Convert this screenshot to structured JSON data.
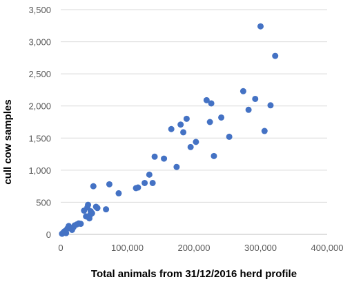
{
  "chart_data": {
    "type": "scatter",
    "title": "",
    "xlabel": "Total animals from 31/12/2016 herd profile",
    "ylabel": "cull cow samples",
    "xlim": [
      0,
      400000
    ],
    "ylim": [
      0,
      3500
    ],
    "x_ticks": [
      0,
      100000,
      200000,
      300000,
      400000
    ],
    "x_tick_labels": [
      "0",
      "100,000",
      "200,000",
      "300,000",
      "400,000"
    ],
    "y_ticks": [
      0,
      500,
      1000,
      1500,
      2000,
      2500,
      3000,
      3500
    ],
    "y_tick_labels": [
      "0",
      "500",
      "1,000",
      "1,500",
      "2,000",
      "2,500",
      "3,000",
      "3,500"
    ],
    "grid": "horizontal",
    "marker_color": "#4472c4",
    "points": [
      {
        "x": 2000,
        "y": 10
      },
      {
        "x": 4000,
        "y": 30
      },
      {
        "x": 6000,
        "y": 50
      },
      {
        "x": 8000,
        "y": 20
      },
      {
        "x": 10000,
        "y": 90
      },
      {
        "x": 12000,
        "y": 130
      },
      {
        "x": 15000,
        "y": 100
      },
      {
        "x": 17000,
        "y": 70
      },
      {
        "x": 19000,
        "y": 110
      },
      {
        "x": 21000,
        "y": 140
      },
      {
        "x": 24000,
        "y": 155
      },
      {
        "x": 27000,
        "y": 170
      },
      {
        "x": 30000,
        "y": 165
      },
      {
        "x": 35000,
        "y": 370
      },
      {
        "x": 38000,
        "y": 280
      },
      {
        "x": 40000,
        "y": 420
      },
      {
        "x": 41000,
        "y": 460
      },
      {
        "x": 43000,
        "y": 250
      },
      {
        "x": 44000,
        "y": 300
      },
      {
        "x": 45000,
        "y": 360
      },
      {
        "x": 47000,
        "y": 330
      },
      {
        "x": 49000,
        "y": 750
      },
      {
        "x": 53000,
        "y": 430
      },
      {
        "x": 55000,
        "y": 410
      },
      {
        "x": 68000,
        "y": 390
      },
      {
        "x": 73000,
        "y": 780
      },
      {
        "x": 87000,
        "y": 640
      },
      {
        "x": 113000,
        "y": 720
      },
      {
        "x": 116000,
        "y": 730
      },
      {
        "x": 126000,
        "y": 800
      },
      {
        "x": 133000,
        "y": 930
      },
      {
        "x": 138000,
        "y": 800
      },
      {
        "x": 141000,
        "y": 1210
      },
      {
        "x": 155000,
        "y": 1180
      },
      {
        "x": 166000,
        "y": 1640
      },
      {
        "x": 174000,
        "y": 1050
      },
      {
        "x": 180000,
        "y": 1710
      },
      {
        "x": 184000,
        "y": 1590
      },
      {
        "x": 189000,
        "y": 1800
      },
      {
        "x": 195000,
        "y": 1360
      },
      {
        "x": 203000,
        "y": 1440
      },
      {
        "x": 219000,
        "y": 2090
      },
      {
        "x": 224000,
        "y": 1750
      },
      {
        "x": 226000,
        "y": 2040
      },
      {
        "x": 230000,
        "y": 1220
      },
      {
        "x": 241000,
        "y": 1820
      },
      {
        "x": 253000,
        "y": 1520
      },
      {
        "x": 274000,
        "y": 2230
      },
      {
        "x": 282000,
        "y": 1940
      },
      {
        "x": 292000,
        "y": 2110
      },
      {
        "x": 300000,
        "y": 3240
      },
      {
        "x": 306000,
        "y": 1610
      },
      {
        "x": 315000,
        "y": 2010
      },
      {
        "x": 322000,
        "y": 2780
      }
    ]
  }
}
